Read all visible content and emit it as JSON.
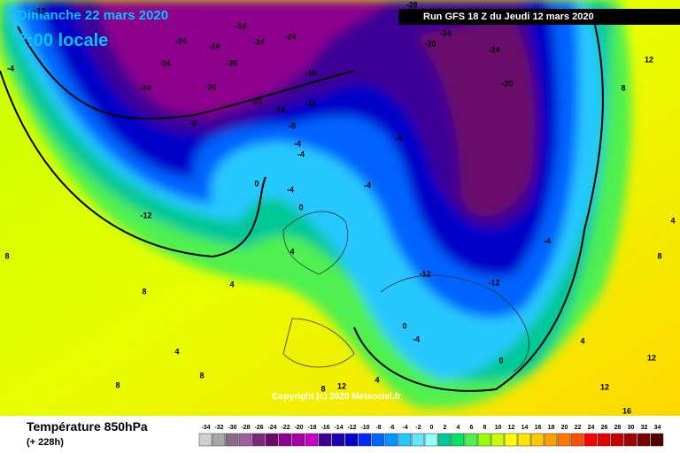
{
  "header": {
    "date": "Dimanche 22 mars 2020",
    "time": "7:00 locale",
    "run": "Run GFS 18 Z du Jeudi 12 mars 2020"
  },
  "copyright": "Copyright (c) 2020 Meteociel.fr",
  "footer": {
    "title": "Température 850hPa",
    "lead": "(+ 228h)"
  },
  "map_labels": [
    "-12",
    "-24",
    "-16",
    "-24",
    "-24",
    "-24",
    "-24",
    "-20",
    "-24",
    "-20",
    "-20",
    "-16",
    "-12",
    "-16",
    "-8",
    "-8",
    "-4",
    "-4",
    "-12",
    "0",
    "-4",
    "0",
    "-4",
    "-4",
    "-12",
    "-12",
    "-20",
    "-24",
    "-24",
    "-20",
    "-28",
    "-24",
    "-4",
    "4",
    "4",
    "8",
    "8",
    "4",
    "8",
    "8",
    "0",
    "-4",
    "0",
    "4",
    "12",
    "8",
    "12",
    "16",
    "12",
    "4",
    "-4",
    "12",
    "8",
    "4",
    "8"
  ],
  "legend": {
    "values": [
      -34,
      -32,
      -30,
      -28,
      -26,
      -24,
      -22,
      -20,
      -18,
      -16,
      -14,
      -12,
      -10,
      -8,
      -6,
      -4,
      -2,
      0,
      2,
      4,
      6,
      8,
      10,
      12,
      14,
      16,
      18,
      20,
      22,
      24,
      26,
      28,
      30,
      32,
      34
    ],
    "colors": [
      "#d0d0d0",
      "#a8a8a8",
      "#8c6c8c",
      "#a060a0",
      "#7a2a7a",
      "#6a0a6a",
      "#8c008c",
      "#a800a8",
      "#c800c8",
      "#3c0096",
      "#1e00b4",
      "#0000c8",
      "#0028ff",
      "#0064ff",
      "#0096ff",
      "#28c8ff",
      "#64e6ff",
      "#96ffff",
      "#00c896",
      "#00e664",
      "#50f050",
      "#96ff00",
      "#c8ff00",
      "#ffff00",
      "#ffe600",
      "#ffc800",
      "#ffa000",
      "#ff7800",
      "#ff5000",
      "#ff0000",
      "#e60000",
      "#c80000",
      "#a00000",
      "#780000",
      "#500000"
    ]
  }
}
